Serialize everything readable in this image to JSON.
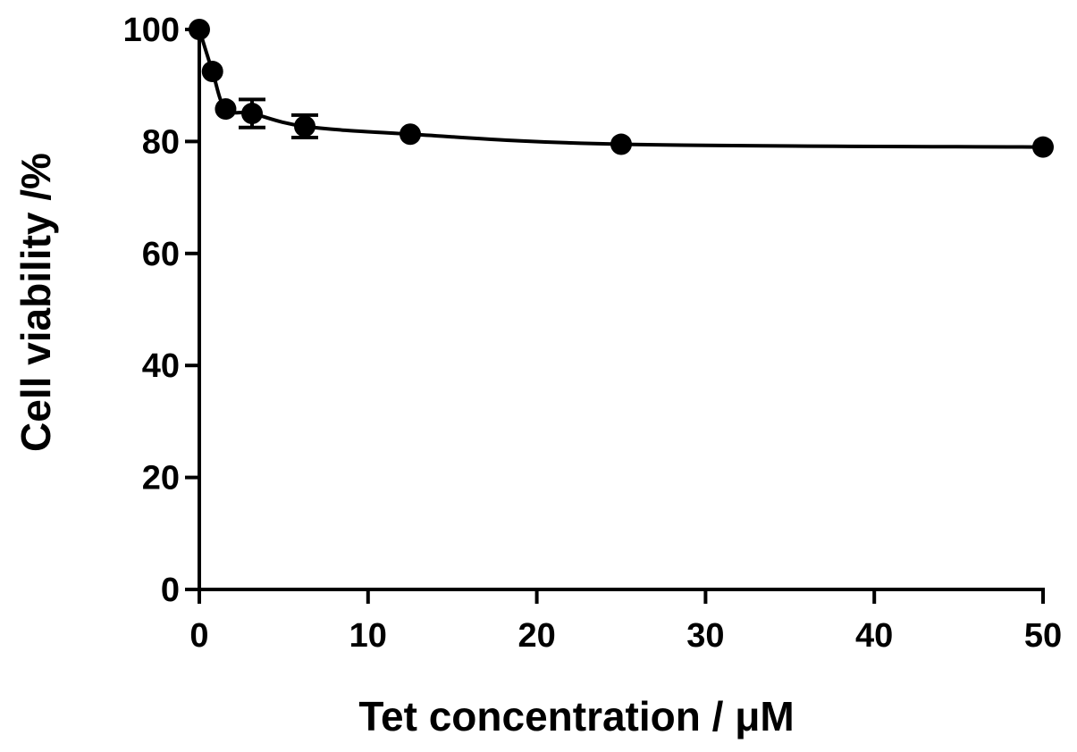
{
  "chart_data": {
    "type": "line",
    "title": "",
    "xlabel": "Tet concentration / μM",
    "ylabel": "Cell viability /%",
    "xlim": [
      0,
      50
    ],
    "ylim": [
      0,
      100
    ],
    "xticks": [
      0,
      10,
      20,
      30,
      40,
      50
    ],
    "yticks": [
      0,
      20,
      40,
      60,
      80,
      100
    ],
    "grid": false,
    "legend": "none",
    "series": [
      {
        "x": [
          0,
          0.78,
          1.56,
          3.125,
          6.25,
          12.5,
          25,
          50
        ],
        "y": [
          100,
          92.5,
          85.8,
          85.0,
          82.7,
          81.3,
          79.5,
          79.0
        ],
        "error": [
          0,
          0,
          0,
          2.5,
          2.0,
          0,
          0,
          0
        ],
        "color": "#000000"
      }
    ]
  }
}
